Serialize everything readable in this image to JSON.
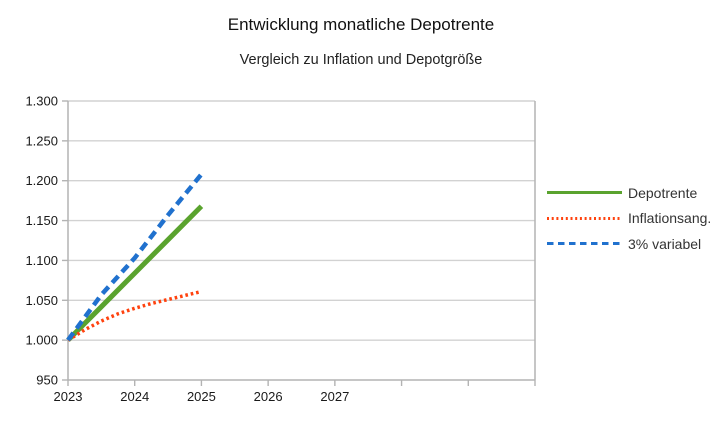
{
  "chart_data": {
    "type": "line",
    "title": "Entwicklung monatliche Depotrente",
    "subtitle": "Vergleich zu Inflation und Depotgröße",
    "x_axis": {
      "range": [
        2023,
        2030
      ],
      "tick_step": 1,
      "tick_labels": [
        "2023",
        "2024",
        "2025",
        "2026",
        "2027"
      ]
    },
    "y_axis": {
      "range": [
        950,
        1300
      ],
      "tick_step": 50,
      "tick_values": [
        950,
        1000,
        1050,
        1100,
        1150,
        1200,
        1250,
        1300
      ],
      "tick_labels": [
        "950",
        "1.000",
        "1.050",
        "1.100",
        "1.150",
        "1.200",
        "1.250",
        "1.300"
      ]
    },
    "grid": "horizontal",
    "legend_position": "right",
    "series": [
      {
        "name": "Depotrente",
        "color": "#5AA32E",
        "style": "solid",
        "width": 5,
        "points": [
          [
            2023,
            1000
          ],
          [
            2023.5,
            1042
          ],
          [
            2024,
            1084
          ],
          [
            2024.5,
            1126
          ],
          [
            2025,
            1168
          ]
        ]
      },
      {
        "name": "Inflationsang.",
        "color": "#FF420E",
        "style": "dotted",
        "width": 3.5,
        "points": [
          [
            2023,
            1000
          ],
          [
            2023.25,
            1013
          ],
          [
            2023.5,
            1024
          ],
          [
            2023.75,
            1033
          ],
          [
            2024,
            1040
          ],
          [
            2024.25,
            1046
          ],
          [
            2024.5,
            1051
          ],
          [
            2024.75,
            1056
          ],
          [
            2025,
            1061
          ]
        ]
      },
      {
        "name": "3% variabel",
        "color": "#2071CE",
        "style": "dashed",
        "width": 4.5,
        "points": [
          [
            2023,
            1000
          ],
          [
            2023.5,
            1057
          ],
          [
            2024,
            1103
          ],
          [
            2024.5,
            1157
          ],
          [
            2025,
            1208
          ]
        ]
      }
    ],
    "axis_color": "#b3b3b3",
    "grid_color": "#d2d2d2",
    "label_color": "#1a1a1a"
  }
}
